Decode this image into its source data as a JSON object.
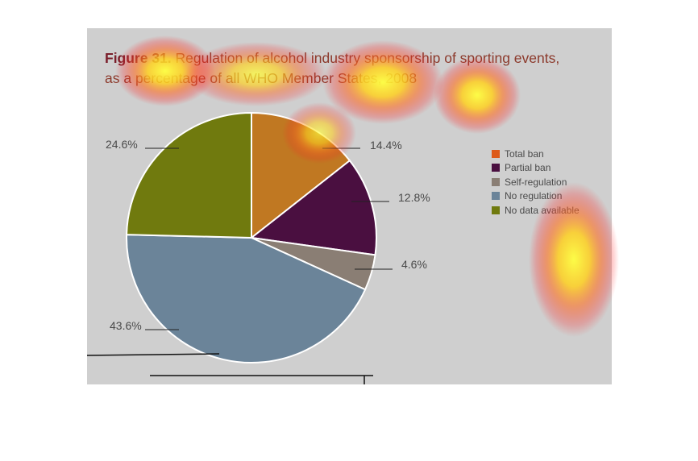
{
  "figure": {
    "label": "Figure 31.",
    "title_line_1": "Regulation of alcohol industry sponsorship of sporting events,",
    "title_line_2": "as a percentage of all WHO Member States, 2008"
  },
  "chart_data": {
    "type": "pie",
    "title": "Figure 31. Regulation of alcohol industry sponsorship of sporting events, as a percentage of all WHO Member States, 2008",
    "unit": "%",
    "legend_position": "right",
    "slices": [
      {
        "name": "Total ban",
        "value": 14.4,
        "label": "14.4%",
        "color": "#c07822"
      },
      {
        "name": "Partial ban",
        "value": 12.8,
        "label": "12.8%",
        "color": "#4a0f40"
      },
      {
        "name": "Self-regulation",
        "value": 4.6,
        "label": "4.6%",
        "color": "#8a7e74"
      },
      {
        "name": "No regulation",
        "value": 43.6,
        "label": "43.6%",
        "color": "#6b8499"
      },
      {
        "name": "No data available",
        "value": 24.6,
        "label": "24.6%",
        "color": "#707a0e"
      }
    ],
    "legend": [
      {
        "name": "Total ban",
        "color": "#dd5a1a"
      },
      {
        "name": "Partial ban",
        "color": "#4a0f40"
      },
      {
        "name": "Self-regulation",
        "color": "#8a7e74"
      },
      {
        "name": "No regulation",
        "color": "#6b8499"
      },
      {
        "name": "No data available",
        "color": "#707a0e"
      }
    ]
  },
  "colors": {
    "panel_background": "#cfcfcf",
    "title_label": "#7a1f2b",
    "title_text": "#8c3a2c",
    "heatmap_overlay": [
      "#ffff40",
      "#ffa020",
      "#ff2020"
    ]
  }
}
